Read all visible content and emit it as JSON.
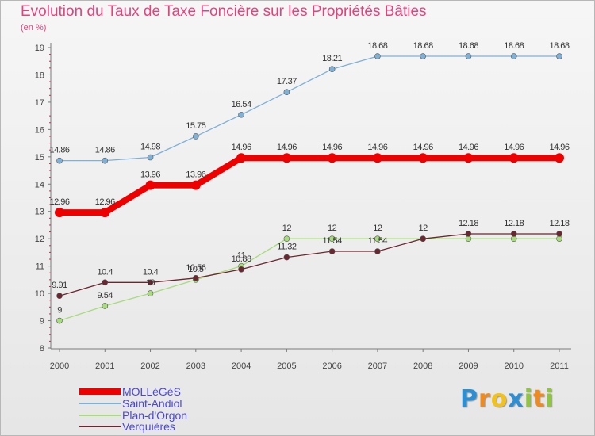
{
  "title": "Evolution du Taux de Taxe Foncière sur les Propriétés Bâties",
  "unit_label": "(en %)",
  "logo": {
    "letters": [
      "P",
      "r",
      "o",
      "x",
      "i",
      "t",
      "i"
    ],
    "colors": [
      "#2b8fd6",
      "#f08a1c",
      "#f2c21b",
      "#2b8fd6",
      "#8fc63d",
      "#f08a1c",
      "#8fc63d"
    ]
  },
  "chart_data": {
    "type": "line",
    "x": [
      "2000",
      "2001",
      "2002",
      "2003",
      "2004",
      "2005",
      "2006",
      "2007",
      "2008",
      "2009",
      "2010",
      "2011"
    ],
    "ylim": [
      8,
      19
    ],
    "yticks": [
      "8",
      "9",
      "10",
      "11",
      "12",
      "13",
      "14",
      "15",
      "16",
      "17",
      "18",
      "19"
    ],
    "grid": false,
    "legend_position": "bottom-left",
    "series": [
      {
        "name": "Plan-d'Orgon",
        "color": "#a6dc7c",
        "values": [
          9,
          9.54,
          10,
          10.5,
          11,
          12,
          12,
          12,
          12,
          12,
          12,
          12
        ],
        "labels": [
          "9",
          "9.54",
          "10",
          "10.5",
          "11",
          "12",
          "12",
          "12",
          "",
          "",
          "",
          ""
        ]
      },
      {
        "name": "Verquières",
        "color": "#6b2630",
        "values": [
          9.91,
          10.4,
          10.4,
          10.56,
          10.88,
          11.32,
          11.54,
          11.54,
          12,
          12.18,
          12.18,
          12.18
        ],
        "labels": [
          "9.91",
          "10.4",
          "10.4",
          "10.56",
          "10.88",
          "11.32",
          "11.54",
          "11.54",
          "12",
          "12.18",
          "12.18",
          "12.18"
        ]
      },
      {
        "name": "Saint-Andiol",
        "color": "#7fb0d6",
        "values": [
          14.86,
          14.86,
          14.98,
          15.75,
          16.54,
          17.37,
          18.21,
          18.68,
          18.68,
          18.68,
          18.68,
          18.68
        ],
        "labels": [
          "14.86",
          "14.86",
          "14.98",
          "15.75",
          "16.54",
          "17.37",
          "18.21",
          "18.68",
          "18.68",
          "18.68",
          "18.68",
          "18.68"
        ]
      },
      {
        "name": "MOLLéGèS",
        "color": "#ee0000",
        "values": [
          12.96,
          12.96,
          13.96,
          13.96,
          14.96,
          14.96,
          14.96,
          14.96,
          14.96,
          14.96,
          14.96,
          14.96
        ],
        "labels": [
          "12.96",
          "12.96",
          "13.96",
          "13.96",
          "14.96",
          "14.96",
          "14.96",
          "14.96",
          "14.96",
          "14.96",
          "14.96",
          "14.96"
        ]
      }
    ],
    "legend": [
      {
        "name": "MOLLéGèS",
        "color": "#ee0000"
      },
      {
        "name": "Saint-Andiol",
        "color": "#7fb0d6"
      },
      {
        "name": "Plan-d'Orgon",
        "color": "#a6dc7c"
      },
      {
        "name": "Verquières",
        "color": "#6b2630"
      }
    ]
  }
}
